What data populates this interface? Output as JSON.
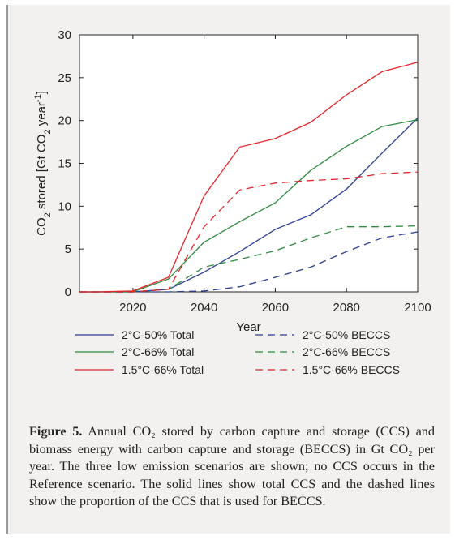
{
  "chart_data": {
    "type": "line",
    "xlabel": "Year",
    "ylabel": "CO2 stored [Gt CO2 year-1]",
    "xlim": [
      2005,
      2100
    ],
    "ylim": [
      0,
      30
    ],
    "xticks": [
      2020,
      2040,
      2060,
      2080,
      2100
    ],
    "yticks": [
      0,
      5,
      10,
      15,
      20,
      25,
      30
    ],
    "grid": false,
    "legend_position": "below",
    "series": [
      {
        "name": "2°C-50% Total",
        "color": "#2b3f93",
        "dash": "solid",
        "x": [
          2005,
          2010,
          2020,
          2030,
          2040,
          2050,
          2060,
          2070,
          2080,
          2090,
          2100
        ],
        "y": [
          0,
          0,
          0,
          0.3,
          2.3,
          4.7,
          7.3,
          9.0,
          12.0,
          16.2,
          20.3
        ]
      },
      {
        "name": "2°C-50% BECCS",
        "color": "#2b3f93",
        "dash": "dashed",
        "x": [
          2005,
          2010,
          2020,
          2030,
          2040,
          2050,
          2060,
          2070,
          2080,
          2090,
          2100
        ],
        "y": [
          0,
          0,
          0,
          0,
          0.1,
          0.6,
          1.7,
          2.9,
          4.7,
          6.3,
          7.0
        ]
      },
      {
        "name": "2°C-66% Total",
        "color": "#2e8b3e",
        "dash": "solid",
        "x": [
          2005,
          2010,
          2020,
          2030,
          2040,
          2050,
          2060,
          2070,
          2080,
          2090,
          2100
        ],
        "y": [
          0,
          0,
          0,
          1.5,
          5.8,
          8.2,
          10.4,
          14.2,
          17.0,
          19.3,
          20.1
        ]
      },
      {
        "name": "2°C-66% BECCS",
        "color": "#2e8b3e",
        "dash": "dashed",
        "x": [
          2005,
          2010,
          2020,
          2030,
          2040,
          2050,
          2060,
          2070,
          2080,
          2090,
          2100
        ],
        "y": [
          0,
          0,
          0,
          0.3,
          2.9,
          3.8,
          4.8,
          6.3,
          7.6,
          7.6,
          7.7
        ]
      },
      {
        "name": "1.5°C-66% Total",
        "color": "#e0262b",
        "dash": "solid",
        "x": [
          2005,
          2010,
          2020,
          2030,
          2040,
          2050,
          2060,
          2070,
          2080,
          2090,
          2100
        ],
        "y": [
          0,
          0,
          0.1,
          1.7,
          11.2,
          16.9,
          17.9,
          19.8,
          23.0,
          25.7,
          26.8
        ]
      },
      {
        "name": "1.5°C-66% BECCS",
        "color": "#e0262b",
        "dash": "dashed",
        "x": [
          2005,
          2010,
          2020,
          2030,
          2040,
          2050,
          2060,
          2070,
          2080,
          2090,
          2100
        ],
        "y": [
          0,
          0,
          0,
          0.3,
          7.6,
          11.9,
          12.7,
          13.0,
          13.2,
          13.8,
          14.0
        ]
      }
    ],
    "legend_order": [
      [
        "2°C-50% Total",
        "2°C-50% BECCS"
      ],
      [
        "2°C-66% Total",
        "2°C-66% BECCS"
      ],
      [
        "1.5°C-66% Total",
        "1.5°C-66% BECCS"
      ]
    ]
  },
  "caption": {
    "label": "Figure 5.",
    "text": " Annual CO₂ stored by carbon capture and storage (CCS) and biomass energy with carbon capture and storage (BECCS) in Gt CO₂ per year. The three low emission scenarios are shown; no CCS occurs in the Reference scenario. The solid lines show total CCS and the dashed lines show the proportion of the CCS that is used for BECCS."
  }
}
